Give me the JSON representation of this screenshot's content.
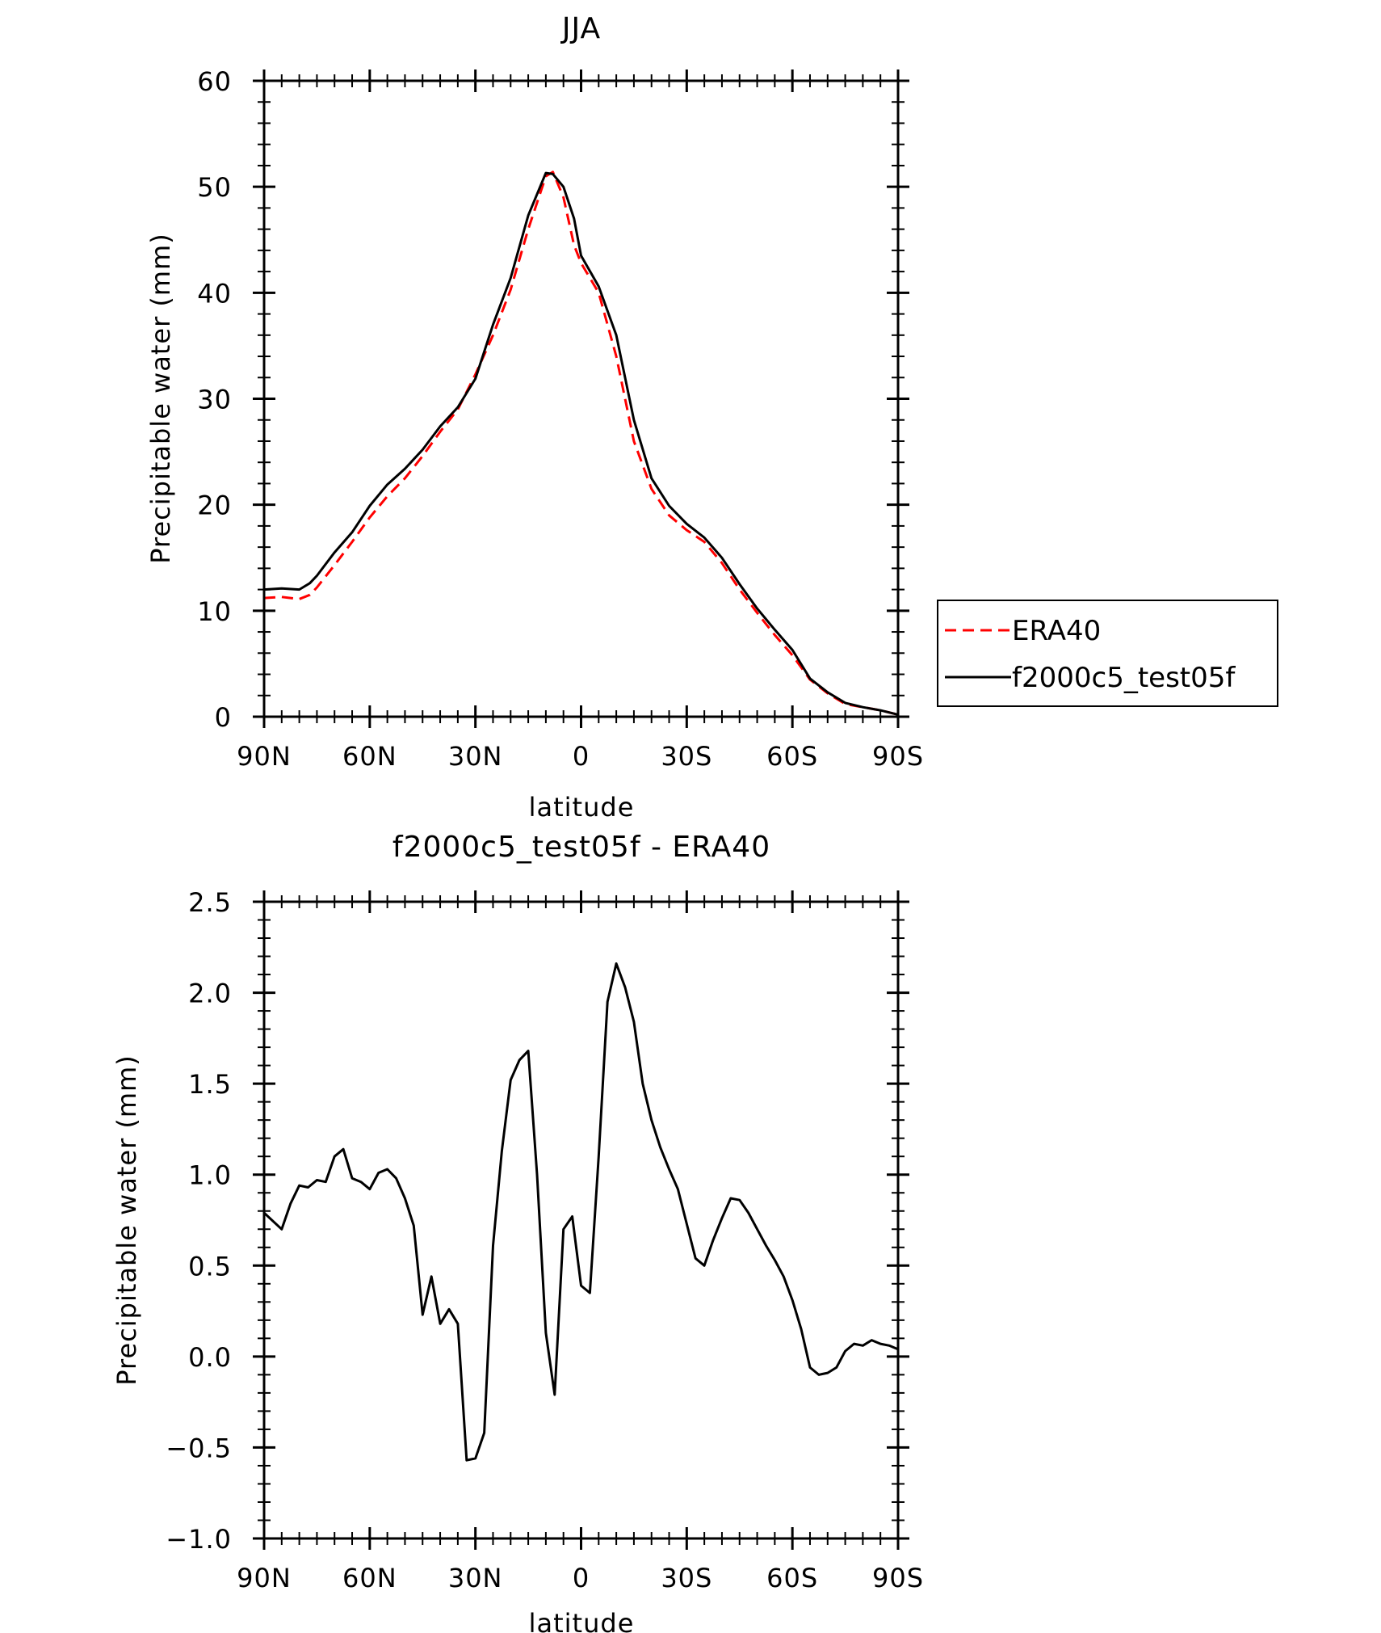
{
  "chart_data": [
    {
      "type": "line",
      "title": "JJA",
      "xlabel": "latitude",
      "ylabel": "Precipitable water (mm)",
      "xlim": [
        90,
        -90
      ],
      "ylim": [
        0,
        60
      ],
      "xticks": [
        90,
        60,
        30,
        0,
        -30,
        -60,
        -90
      ],
      "xtick_labels": [
        "90N",
        "60N",
        "30N",
        "0",
        "30S",
        "60S",
        "90S"
      ],
      "yticks": [
        0,
        10,
        20,
        30,
        40,
        50,
        60
      ],
      "ytick_labels": [
        "0",
        "10",
        "20",
        "30",
        "40",
        "50",
        "60"
      ],
      "legend_position": "right",
      "legend_entries": [
        "ERA40",
        "f2000c5_test05f"
      ],
      "series": [
        {
          "name": "ERA40",
          "color": "#ff0000",
          "style": "dashed",
          "x": [
            90,
            85,
            80,
            77,
            75,
            70,
            65,
            60,
            55,
            50,
            45,
            40,
            35,
            30,
            25,
            20,
            15,
            10,
            8,
            5,
            2,
            0,
            -5,
            -10,
            -15,
            -20,
            -25,
            -30,
            -35,
            -40,
            -45,
            -50,
            -55,
            -60,
            -65,
            -70,
            -75,
            -80,
            -85,
            -90
          ],
          "values": [
            11.2,
            11.3,
            11.1,
            11.5,
            12.2,
            14.3,
            16.5,
            18.8,
            20.8,
            22.5,
            24.6,
            26.9,
            29.0,
            32.3,
            36.0,
            40.3,
            46.0,
            51.0,
            51.4,
            49.0,
            44.5,
            42.8,
            40.0,
            34.0,
            26.0,
            21.5,
            19.0,
            17.6,
            16.5,
            14.5,
            12.0,
            9.8,
            7.7,
            5.8,
            3.5,
            2.2,
            1.2,
            0.9,
            0.6,
            0.2
          ]
        },
        {
          "name": "f2000c5_test05f",
          "color": "#000000",
          "style": "solid",
          "x": [
            90,
            85,
            80,
            77,
            75,
            70,
            65,
            60,
            55,
            50,
            45,
            40,
            35,
            30,
            25,
            20,
            15,
            10,
            8,
            5,
            2,
            0,
            -5,
            -10,
            -15,
            -20,
            -25,
            -30,
            -35,
            -40,
            -45,
            -50,
            -55,
            -60,
            -65,
            -70,
            -75,
            -80,
            -85,
            -90
          ],
          "values": [
            12.0,
            12.1,
            12.0,
            12.6,
            13.3,
            15.5,
            17.4,
            19.9,
            21.9,
            23.4,
            25.2,
            27.4,
            29.2,
            31.9,
            37.0,
            41.4,
            47.3,
            51.3,
            51.2,
            50.0,
            47.0,
            43.5,
            40.6,
            36.0,
            28.0,
            22.5,
            19.9,
            18.2,
            16.9,
            15.0,
            12.5,
            10.2,
            8.2,
            6.3,
            3.6,
            2.3,
            1.3,
            0.9,
            0.6,
            0.2
          ]
        }
      ]
    },
    {
      "type": "line",
      "title": "f2000c5_test05f - ERA40",
      "xlabel": "latitude",
      "ylabel": "Precipitable water (mm)",
      "xlim": [
        90,
        -90
      ],
      "ylim": [
        -1.0,
        2.5
      ],
      "xticks": [
        90,
        60,
        30,
        0,
        -30,
        -60,
        -90
      ],
      "xtick_labels": [
        "90N",
        "60N",
        "30N",
        "0",
        "30S",
        "60S",
        "90S"
      ],
      "yticks": [
        -1.0,
        -0.5,
        0.0,
        0.5,
        1.0,
        1.5,
        2.0,
        2.5
      ],
      "ytick_labels": [
        "−1.0",
        "−0.5",
        "0.0",
        "0.5",
        "1.0",
        "1.5",
        "2.0",
        "2.5"
      ],
      "series": [
        {
          "color": "#000000",
          "style": "solid",
          "x": [
            90,
            85,
            82.5,
            80,
            77.5,
            75,
            72.5,
            70,
            67.5,
            65,
            62.5,
            60,
            57.5,
            55,
            52.5,
            50,
            47.5,
            45,
            42.5,
            40,
            37.5,
            35,
            32.5,
            30,
            27.5,
            25,
            22.5,
            20,
            17.5,
            15,
            12.5,
            10,
            7.5,
            5,
            2.5,
            0,
            -2.5,
            -5,
            -7.5,
            -10,
            -12.5,
            -15,
            -17.5,
            -20,
            -22.5,
            -25,
            -27.5,
            -30,
            -32.5,
            -35,
            -37.5,
            -40,
            -42.5,
            -45,
            -47.5,
            -50,
            -52.5,
            -55,
            -57.5,
            -60,
            -62.5,
            -65,
            -67.5,
            -70,
            -72.5,
            -75,
            -77.5,
            -80,
            -82.5,
            -85,
            -87.5,
            -90
          ],
          "values": [
            0.79,
            0.7,
            0.84,
            0.94,
            0.93,
            0.97,
            0.96,
            1.1,
            1.14,
            0.98,
            0.96,
            0.92,
            1.01,
            1.03,
            0.98,
            0.87,
            0.72,
            0.23,
            0.44,
            0.18,
            0.26,
            0.18,
            -0.57,
            -0.56,
            -0.42,
            0.61,
            1.13,
            1.52,
            1.63,
            1.68,
            1.0,
            0.13,
            -0.21,
            0.7,
            0.77,
            0.39,
            0.35,
            1.1,
            1.95,
            2.16,
            2.03,
            1.84,
            1.5,
            1.3,
            1.15,
            1.03,
            0.92,
            0.73,
            0.54,
            0.5,
            0.64,
            0.76,
            0.87,
            0.86,
            0.79,
            0.7,
            0.61,
            0.53,
            0.44,
            0.31,
            0.15,
            -0.06,
            -0.1,
            -0.09,
            -0.06,
            0.03,
            0.07,
            0.06,
            0.09,
            0.07,
            0.06,
            0.04
          ]
        }
      ]
    }
  ]
}
